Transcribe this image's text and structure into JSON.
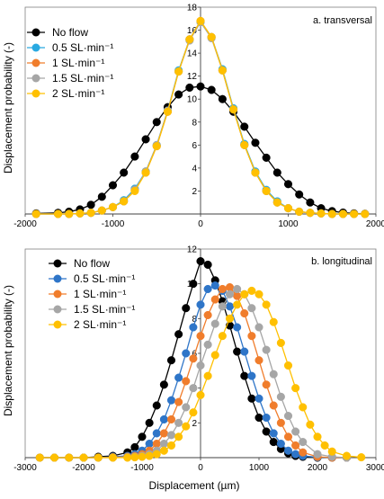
{
  "figure": {
    "shared_ylabel": "Displacement probability (-)"
  },
  "chart_data": [
    {
      "type": "line",
      "title": "a. transversal",
      "xlabel": "",
      "ylabel": "Displacement probability (-)",
      "xlim": [
        -2000,
        2000
      ],
      "ylim": [
        0,
        18
      ],
      "xticks": [
        -2000,
        -1000,
        0,
        1000,
        2000
      ],
      "yticks": [
        2,
        4,
        6,
        8,
        10,
        12,
        14,
        16,
        18
      ],
      "grid": false,
      "legend_position": "top-left",
      "x": [
        -1875,
        -1625,
        -1500,
        -1375,
        -1250,
        -1125,
        -1000,
        -875,
        -750,
        -625,
        -500,
        -375,
        -250,
        -125,
        0,
        125,
        250,
        375,
        500,
        625,
        750,
        875,
        1000,
        1125,
        1250,
        1375,
        1500,
        1625,
        1750,
        1875
      ],
      "series": [
        {
          "name": "No flow",
          "color": "#000000",
          "values": [
            0.05,
            0.1,
            0.2,
            0.4,
            0.8,
            1.5,
            2.5,
            3.6,
            5.0,
            6.5,
            8.0,
            9.3,
            10.4,
            11.0,
            11.1,
            10.8,
            10.0,
            8.9,
            7.6,
            6.2,
            4.9,
            3.6,
            2.6,
            1.7,
            1.0,
            0.5,
            0.25,
            0.12,
            0.05,
            0.02
          ]
        },
        {
          "name": "0.5 SL·min⁻¹",
          "color": "#29a9e1",
          "values": [
            0,
            0,
            0,
            0.05,
            0.1,
            0.3,
            0.6,
            1.2,
            2.2,
            3.7,
            6.0,
            9.0,
            12.5,
            15.2,
            16.7,
            15.4,
            12.6,
            9.2,
            6.1,
            3.7,
            2.1,
            1.1,
            0.5,
            0.2,
            0.1,
            0.05,
            0,
            0,
            0,
            0
          ]
        },
        {
          "name": "1 SL·min⁻¹",
          "color": "#f07d2c",
          "values": [
            0,
            0,
            0,
            0.05,
            0.1,
            0.3,
            0.6,
            1.1,
            2.1,
            3.6,
            5.9,
            8.9,
            12.4,
            15.2,
            16.8,
            15.4,
            12.5,
            9.1,
            6.0,
            3.6,
            2.0,
            1.0,
            0.5,
            0.2,
            0.1,
            0.05,
            0,
            0,
            0,
            0
          ]
        },
        {
          "name": "1.5 SL·min⁻¹",
          "color": "#a6a6a6",
          "values": [
            0,
            0,
            0,
            0.05,
            0.1,
            0.3,
            0.6,
            1.1,
            2.1,
            3.7,
            6.0,
            9.0,
            12.4,
            15.1,
            16.7,
            15.3,
            12.5,
            9.1,
            6.0,
            3.6,
            2.0,
            1.0,
            0.5,
            0.2,
            0.1,
            0.05,
            0,
            0,
            0,
            0
          ]
        },
        {
          "name": "2 SL·min⁻¹",
          "color": "#ffc000",
          "values": [
            0,
            0,
            0,
            0.05,
            0.1,
            0.3,
            0.6,
            1.1,
            2.0,
            3.6,
            5.9,
            8.9,
            12.4,
            15.2,
            16.8,
            15.4,
            12.5,
            9.1,
            6.0,
            3.6,
            2.0,
            1.0,
            0.5,
            0.2,
            0.1,
            0.05,
            0,
            0,
            0,
            0
          ]
        }
      ]
    },
    {
      "type": "line",
      "title": "b. longitudinal",
      "xlabel": "Displacement (µm)",
      "ylabel": "Displacement probability (-)",
      "xlim": [
        -3000,
        3000
      ],
      "ylim": [
        0,
        12
      ],
      "xticks": [
        -3000,
        -2000,
        -1000,
        0,
        1000,
        2000,
        3000
      ],
      "yticks": [
        2,
        4,
        6,
        8,
        10,
        12
      ],
      "grid": false,
      "legend_position": "top-left",
      "series": [
        {
          "name": "No flow",
          "color": "#000000",
          "x": [
            -2750,
            -2500,
            -2250,
            -2000,
            -1750,
            -1500,
            -1250,
            -1125,
            -1000,
            -875,
            -750,
            -625,
            -500,
            -375,
            -250,
            -125,
            0,
            125,
            250,
            375,
            500,
            625,
            750,
            875,
            1000,
            1125,
            1250,
            1375,
            1500,
            1625,
            1750,
            2000,
            2250,
            2500
          ],
          "values": [
            0,
            0,
            0,
            0,
            0.05,
            0.1,
            0.3,
            0.6,
            1.2,
            2.0,
            3.0,
            4.2,
            5.6,
            7.1,
            8.6,
            10.0,
            11.3,
            11.1,
            10.2,
            9.0,
            7.6,
            6.1,
            4.7,
            3.4,
            2.3,
            1.5,
            0.9,
            0.5,
            0.25,
            0.1,
            0.05,
            0,
            0,
            0
          ]
        },
        {
          "name": "0.5 SL·min⁻¹",
          "color": "#2e75c8",
          "x": [
            -2750,
            -2500,
            -2250,
            -2000,
            -1750,
            -1500,
            -1250,
            -1125,
            -1000,
            -875,
            -750,
            -625,
            -500,
            -375,
            -250,
            -125,
            0,
            125,
            250,
            375,
            500,
            625,
            750,
            875,
            1000,
            1125,
            1250,
            1375,
            1500,
            1625,
            1750,
            2000,
            2250,
            2500
          ],
          "values": [
            0,
            0,
            0,
            0,
            0,
            0.05,
            0.1,
            0.2,
            0.4,
            0.8,
            1.4,
            2.2,
            3.3,
            4.6,
            6.0,
            7.5,
            8.8,
            9.7,
            9.9,
            9.6,
            8.7,
            7.5,
            6.1,
            4.7,
            3.4,
            2.3,
            1.4,
            0.8,
            0.4,
            0.2,
            0.1,
            0.02,
            0,
            0
          ]
        },
        {
          "name": "1 SL·min⁻¹",
          "color": "#f07d2c",
          "x": [
            -2750,
            -2500,
            -2250,
            -2000,
            -1750,
            -1500,
            -1250,
            -1125,
            -1000,
            -875,
            -750,
            -625,
            -500,
            -375,
            -250,
            -125,
            0,
            125,
            250,
            375,
            500,
            625,
            750,
            875,
            1000,
            1125,
            1250,
            1375,
            1500,
            1625,
            1750,
            2000,
            2250,
            2500
          ],
          "values": [
            0,
            0,
            0,
            0,
            0,
            0.02,
            0.05,
            0.1,
            0.2,
            0.4,
            0.8,
            1.4,
            2.2,
            3.2,
            4.4,
            5.7,
            7.0,
            8.2,
            9.1,
            9.7,
            9.8,
            9.3,
            8.3,
            7.0,
            5.6,
            4.2,
            3.0,
            2.0,
            1.2,
            0.7,
            0.3,
            0.05,
            0,
            0
          ]
        },
        {
          "name": "1.5 SL·min⁻¹",
          "color": "#a6a6a6",
          "x": [
            -2750,
            -2500,
            -2250,
            -2000,
            -1750,
            -1500,
            -1250,
            -1125,
            -1000,
            -875,
            -750,
            -625,
            -500,
            -375,
            -250,
            -125,
            0,
            125,
            250,
            375,
            500,
            625,
            750,
            875,
            1000,
            1125,
            1250,
            1375,
            1500,
            1625,
            1750,
            2000,
            2250,
            2500
          ],
          "values": [
            0,
            0,
            0,
            0,
            0,
            0,
            0.02,
            0.05,
            0.1,
            0.2,
            0.4,
            0.8,
            1.3,
            2.0,
            2.9,
            4.0,
            5.3,
            6.5,
            7.7,
            8.7,
            9.4,
            9.7,
            9.4,
            8.6,
            7.5,
            6.2,
            4.8,
            3.5,
            2.4,
            1.5,
            0.9,
            0.2,
            0.05,
            0
          ]
        },
        {
          "name": "2 SL·min⁻¹",
          "color": "#ffc000",
          "x": [
            -2750,
            -2500,
            -2250,
            -2000,
            -1750,
            -1500,
            -1250,
            -1125,
            -1000,
            -875,
            -750,
            -625,
            -500,
            -375,
            -250,
            -125,
            0,
            125,
            250,
            375,
            500,
            625,
            750,
            875,
            1000,
            1125,
            1250,
            1375,
            1500,
            1625,
            1750,
            1875,
            2000,
            2125,
            2250,
            2500,
            2750
          ],
          "values": [
            0,
            0,
            0,
            0,
            0,
            0,
            0,
            0.02,
            0.05,
            0.1,
            0.2,
            0.4,
            0.7,
            1.2,
            1.8,
            2.6,
            3.6,
            4.7,
            5.9,
            7.0,
            8.0,
            8.8,
            9.4,
            9.6,
            9.4,
            8.8,
            7.8,
            6.6,
            5.3,
            4.0,
            2.9,
            1.9,
            1.2,
            0.7,
            0.35,
            0.1,
            0.02
          ]
        }
      ]
    }
  ]
}
